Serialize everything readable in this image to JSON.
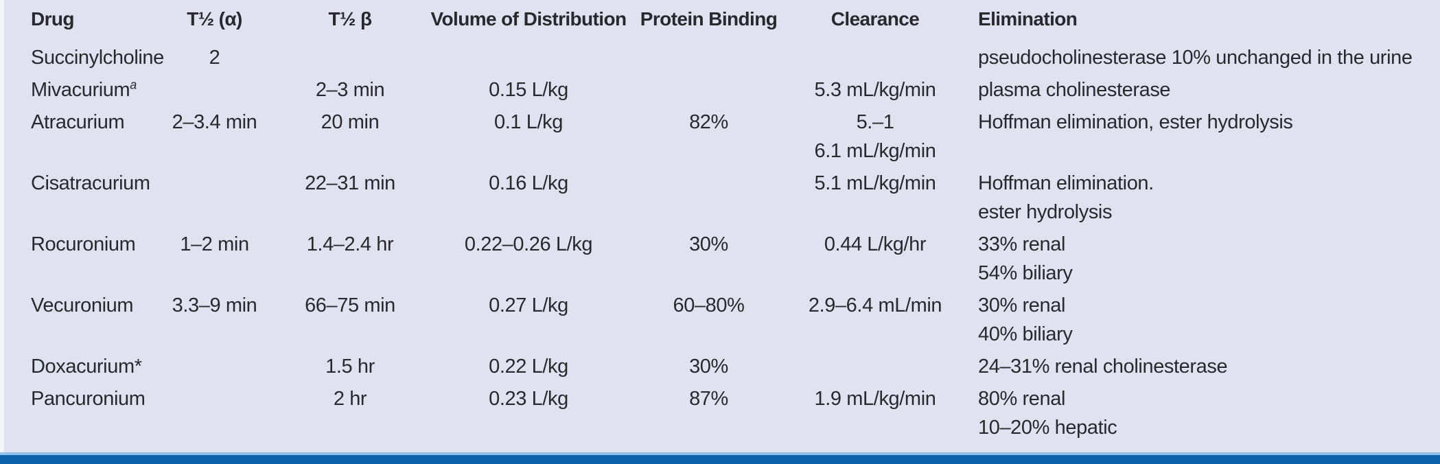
{
  "colors": {
    "background": "#e0e3ef",
    "text": "#29282e",
    "bottom_bar_dark": "#0d63ab",
    "bottom_bar_light": "#8fc2e9"
  },
  "table": {
    "columns": [
      {
        "key": "drug",
        "label": "Drug",
        "align": "left"
      },
      {
        "key": "t_half_alpha",
        "label": "T½ (α)",
        "align": "center"
      },
      {
        "key": "t_half_beta",
        "label": "T½ β",
        "align": "center"
      },
      {
        "key": "volume_of_distribution",
        "label": "Volume of Distribution",
        "align": "center"
      },
      {
        "key": "protein_binding",
        "label": "Protein Binding",
        "align": "center"
      },
      {
        "key": "clearance",
        "label": "Clearance",
        "align": "center"
      },
      {
        "key": "elimination",
        "label": "Elimination",
        "align": "left"
      }
    ],
    "rows": [
      {
        "drug": "Succinylcholine",
        "drug_sup": "",
        "t_half_alpha": [
          "2"
        ],
        "t_half_beta": [],
        "volume_of_distribution": [],
        "protein_binding": [],
        "clearance": [],
        "elimination": [
          "pseudocholinesterase 10% unchanged in the urine"
        ]
      },
      {
        "drug": "Mivacurium",
        "drug_sup": "a",
        "t_half_alpha": [],
        "t_half_beta": [
          "2–3 min"
        ],
        "volume_of_distribution": [
          "0.15 L/kg"
        ],
        "protein_binding": [],
        "clearance": [
          "5.3 mL/kg/min"
        ],
        "elimination": [
          "plasma cholinesterase"
        ]
      },
      {
        "drug": "Atracurium",
        "drug_sup": "",
        "t_half_alpha": [
          "2–3.4 min"
        ],
        "t_half_beta": [
          "20 min"
        ],
        "volume_of_distribution": [
          "0.1 L/kg"
        ],
        "protein_binding": [
          "82%"
        ],
        "clearance": [
          "5.–1",
          "6.1 mL/kg/min"
        ],
        "elimination": [
          "Hoffman elimination, ester hydrolysis"
        ]
      },
      {
        "drug": "Cisatracurium",
        "drug_sup": "",
        "t_half_alpha": [],
        "t_half_beta": [
          "22–31 min"
        ],
        "volume_of_distribution": [
          "0.16 L/kg"
        ],
        "protein_binding": [],
        "clearance": [
          "5.1 mL/kg/min"
        ],
        "elimination": [
          "Hoffman elimination.",
          "ester hydrolysis"
        ]
      },
      {
        "drug": "Rocuronium",
        "drug_sup": "",
        "t_half_alpha": [
          "1–2 min"
        ],
        "t_half_beta": [
          "1.4–2.4 hr"
        ],
        "volume_of_distribution": [
          "0.22–0.26 L/kg"
        ],
        "protein_binding": [
          "30%"
        ],
        "clearance": [
          "0.44 L/kg/hr"
        ],
        "elimination": [
          "33% renal",
          "54% biliary"
        ]
      },
      {
        "drug": "Vecuronium",
        "drug_sup": "",
        "t_half_alpha": [
          "3.3–9 min"
        ],
        "t_half_beta": [
          "66–75 min"
        ],
        "volume_of_distribution": [
          "0.27 L/kg"
        ],
        "protein_binding": [
          "60–80%"
        ],
        "clearance": [
          "2.9–6.4 mL/min"
        ],
        "elimination": [
          "30% renal",
          "40% biliary"
        ]
      },
      {
        "drug": "Doxacurium*",
        "drug_sup": "",
        "t_half_alpha": [],
        "t_half_beta": [
          "1.5 hr"
        ],
        "volume_of_distribution": [
          "0.22 L/kg"
        ],
        "protein_binding": [
          "30%"
        ],
        "clearance": [],
        "elimination": [
          "24–31% renal cholinesterase"
        ]
      },
      {
        "drug": "Pancuronium",
        "drug_sup": "",
        "t_half_alpha": [],
        "t_half_beta": [
          "2 hr"
        ],
        "volume_of_distribution": [
          "0.23 L/kg"
        ],
        "protein_binding": [
          "87%"
        ],
        "clearance": [
          "1.9 mL/kg/min"
        ],
        "elimination": [
          "80% renal",
          "10–20% hepatic"
        ]
      }
    ]
  }
}
